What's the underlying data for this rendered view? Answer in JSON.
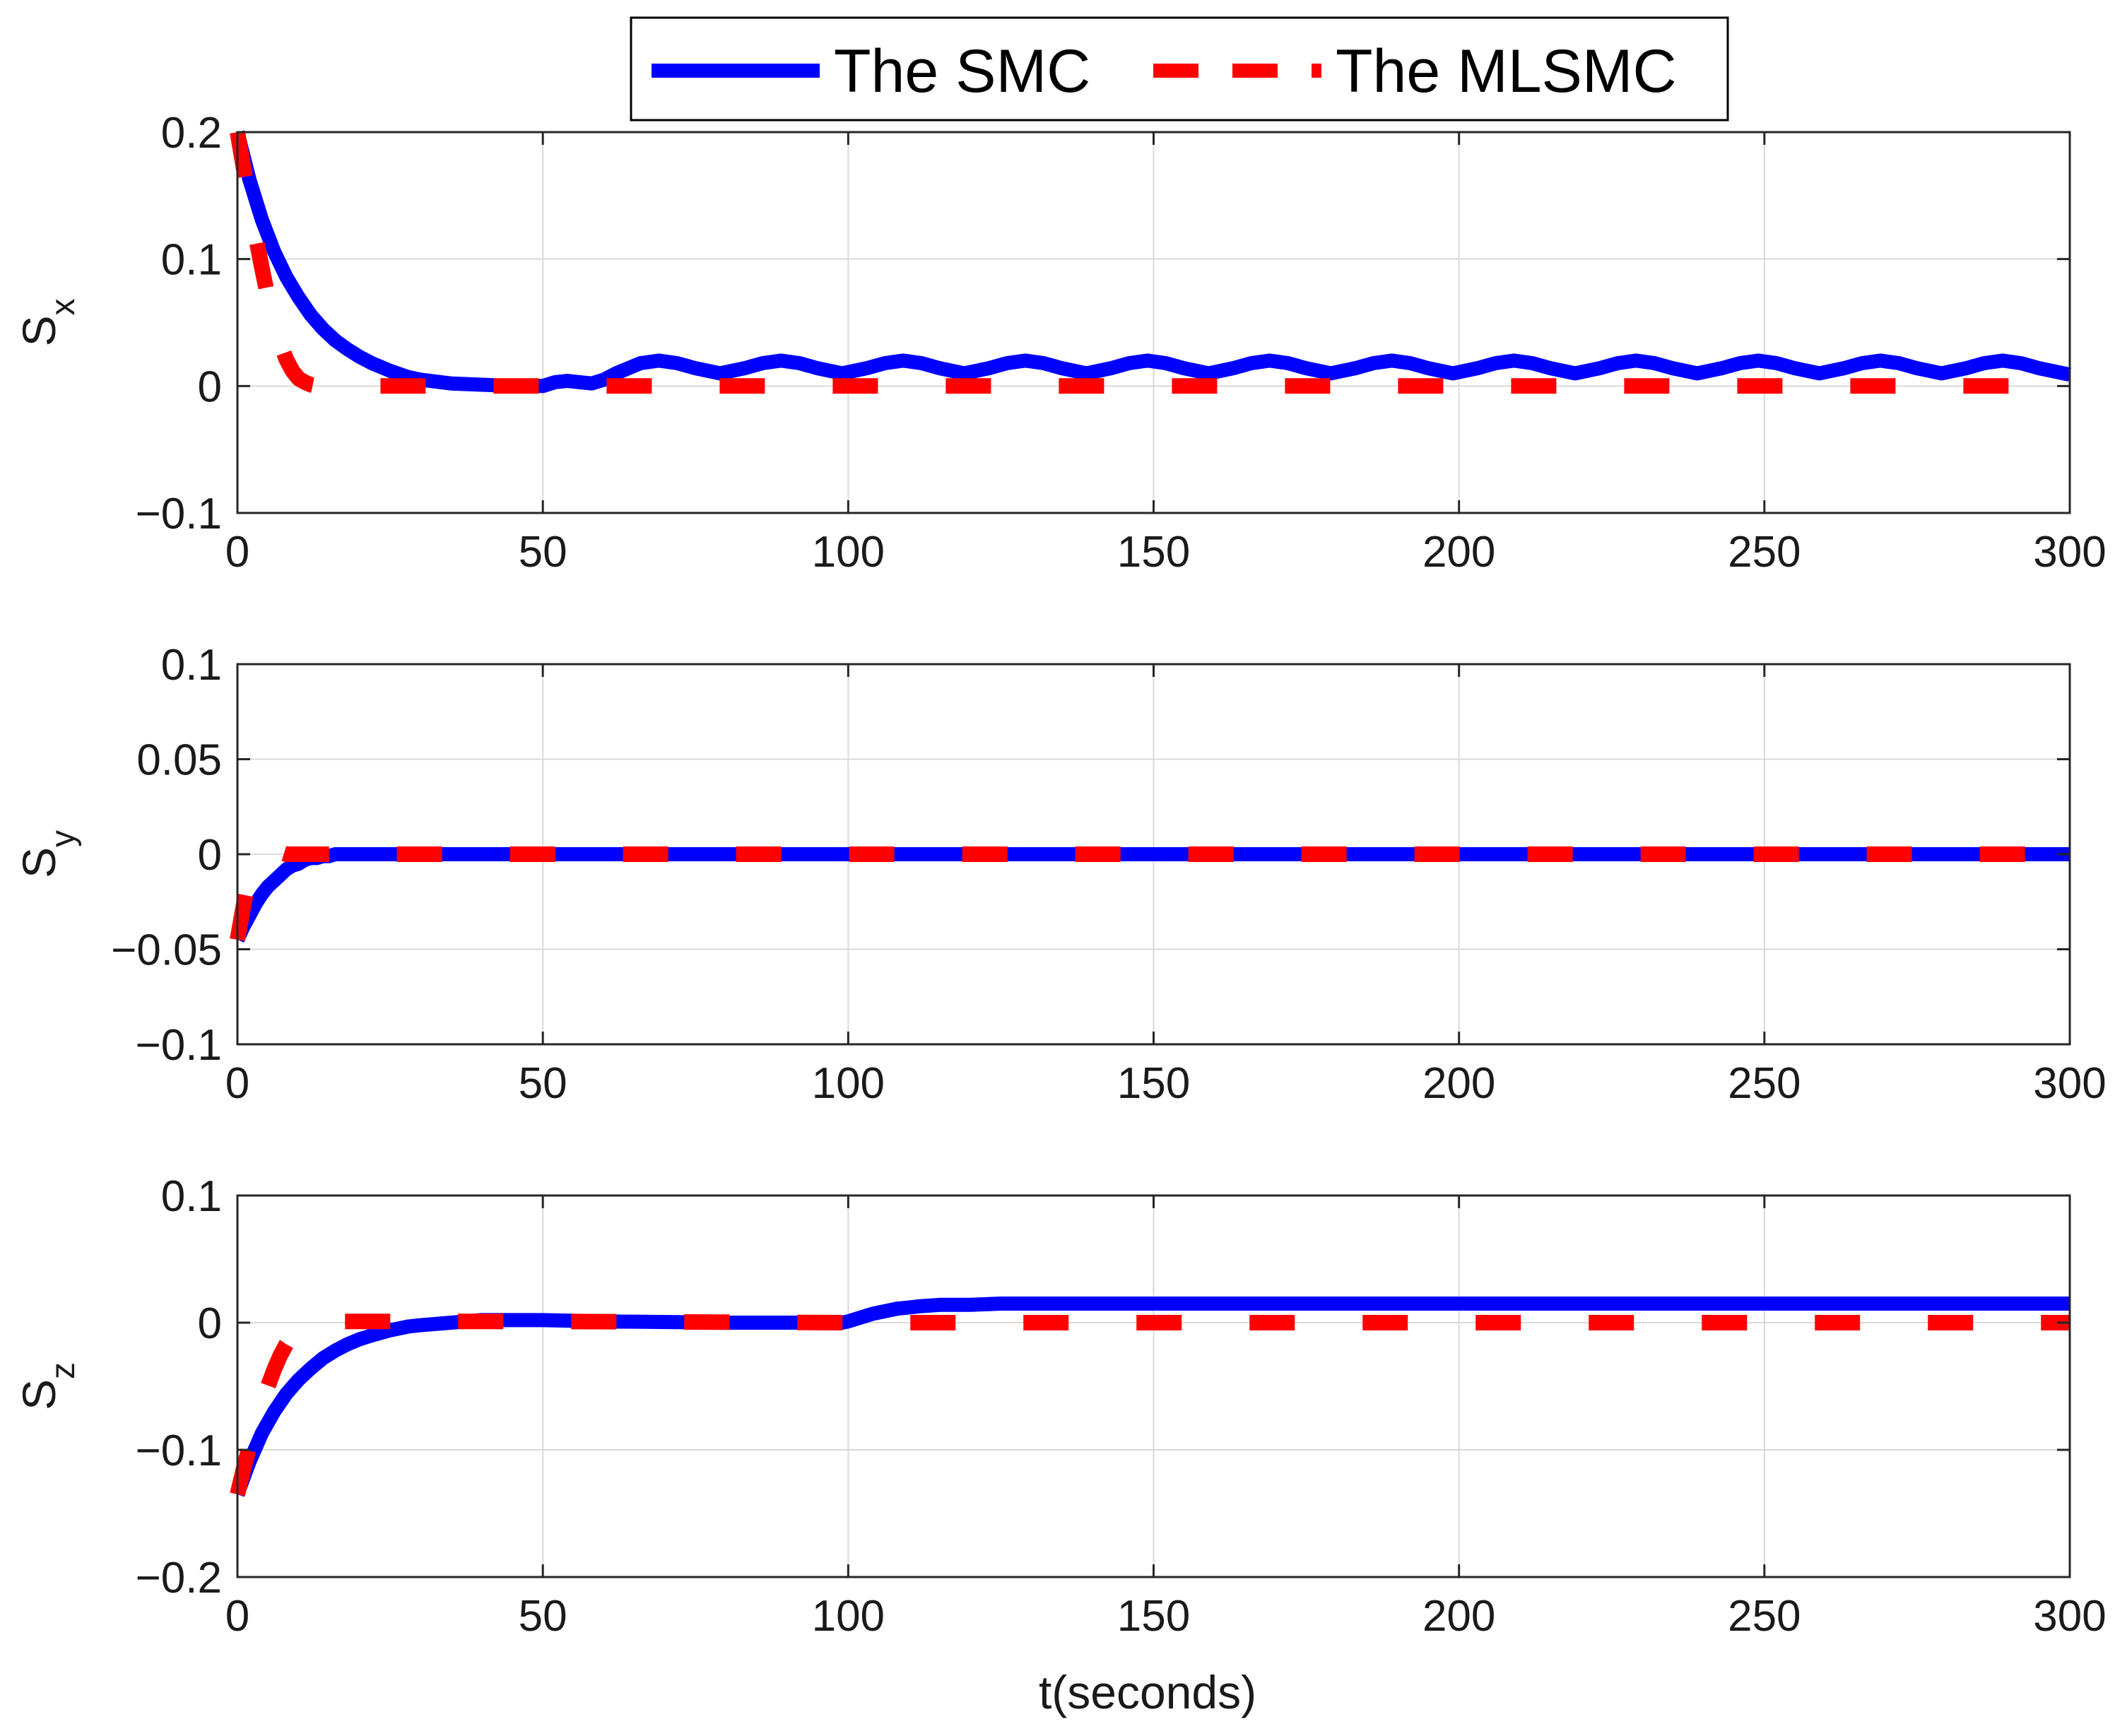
{
  "colors": {
    "smc": "#0000ff",
    "mlsmc": "#ff0000",
    "grid": "#d9d9d9",
    "axis": "#262626"
  },
  "legend": {
    "placement": "top-center",
    "entries": [
      "The SMC",
      "The MLSMC"
    ]
  },
  "chart_data": [
    {
      "type": "line",
      "title": "",
      "xlabel": "",
      "ylabel_base": "S",
      "ylabel_sub": "x",
      "xlim": [
        0,
        300
      ],
      "ylim": [
        -0.1,
        0.2
      ],
      "xticks": [
        0,
        50,
        100,
        150,
        200,
        250,
        300
      ],
      "xtick_labels": [
        "0",
        "50",
        "100",
        "150",
        "200",
        "250",
        "300"
      ],
      "yticks": [
        -0.1,
        0,
        0.1,
        0.2
      ],
      "ytick_labels": [
        "−0.1",
        "0",
        "0.1",
        "0.2"
      ],
      "grid": true,
      "series": [
        {
          "name": "The SMC",
          "x": [
            0,
            2,
            4,
            6,
            8,
            10,
            12,
            14,
            16,
            18,
            20,
            22,
            25,
            28,
            30,
            35,
            40,
            45,
            50,
            52,
            54,
            56,
            58,
            60,
            62,
            64,
            66,
            69,
            72,
            75,
            79,
            83,
            86,
            89,
            92,
            95,
            99,
            103,
            106,
            109,
            112,
            115,
            119,
            123,
            126,
            129,
            132,
            135,
            139,
            143,
            146,
            149,
            152,
            155,
            159,
            163,
            166,
            169,
            172,
            175,
            179,
            183,
            186,
            189,
            192,
            195,
            199,
            203,
            206,
            209,
            212,
            215,
            219,
            223,
            226,
            229,
            232,
            235,
            239,
            243,
            246,
            249,
            252,
            255,
            259,
            263,
            266,
            269,
            272,
            275,
            279,
            283,
            286,
            289,
            292,
            295,
            300
          ],
          "y": [
            0.2,
            0.162,
            0.131,
            0.106,
            0.086,
            0.07,
            0.056,
            0.045,
            0.036,
            0.029,
            0.023,
            0.018,
            0.012,
            0.007,
            0.005,
            0.002,
            0.001,
            0.0,
            0.0,
            0.003,
            0.004,
            0.003,
            0.002,
            0.005,
            0.01,
            0.014,
            0.018,
            0.02,
            0.018,
            0.014,
            0.01,
            0.014,
            0.018,
            0.02,
            0.018,
            0.014,
            0.01,
            0.014,
            0.018,
            0.02,
            0.018,
            0.014,
            0.01,
            0.014,
            0.018,
            0.02,
            0.018,
            0.014,
            0.01,
            0.014,
            0.018,
            0.02,
            0.018,
            0.014,
            0.01,
            0.014,
            0.018,
            0.02,
            0.018,
            0.014,
            0.01,
            0.014,
            0.018,
            0.02,
            0.018,
            0.014,
            0.01,
            0.014,
            0.018,
            0.02,
            0.018,
            0.014,
            0.01,
            0.014,
            0.018,
            0.02,
            0.018,
            0.014,
            0.01,
            0.014,
            0.018,
            0.02,
            0.018,
            0.014,
            0.01,
            0.014,
            0.018,
            0.02,
            0.018,
            0.014,
            0.01,
            0.014,
            0.018,
            0.02,
            0.018,
            0.014,
            0.009
          ]
        },
        {
          "name": "The MLSMC",
          "x": [
            0,
            1,
            2,
            3,
            4,
            5,
            6,
            7,
            8,
            9,
            10,
            11,
            12,
            13,
            14,
            16,
            18,
            20,
            25,
            30,
            50,
            100,
            150,
            200,
            250,
            300
          ],
          "y": [
            0.2,
            0.172,
            0.145,
            0.118,
            0.093,
            0.07,
            0.05,
            0.034,
            0.021,
            0.012,
            0.006,
            0.003,
            0.001,
            0.0,
            0.0,
            0.0,
            0.0,
            0.0,
            0.0,
            0.0,
            0.0,
            0.0,
            0.0,
            0.0,
            0.0,
            0.0
          ]
        }
      ]
    },
    {
      "type": "line",
      "title": "",
      "xlabel": "",
      "ylabel_base": "S",
      "ylabel_sub": "y",
      "xlim": [
        0,
        300
      ],
      "ylim": [
        -0.1,
        0.1
      ],
      "xticks": [
        0,
        50,
        100,
        150,
        200,
        250,
        300
      ],
      "xtick_labels": [
        "0",
        "50",
        "100",
        "150",
        "200",
        "250",
        "300"
      ],
      "yticks": [
        -0.1,
        -0.05,
        0,
        0.05,
        0.1
      ],
      "ytick_labels": [
        "−0.1",
        "−0.05",
        "0",
        "0.05",
        "0.1"
      ],
      "grid": true,
      "series": [
        {
          "name": "The SMC",
          "x": [
            0,
            1,
            2,
            3,
            4,
            5,
            6,
            7,
            8,
            9,
            10,
            11,
            12,
            13,
            14,
            15,
            16,
            18,
            20,
            25,
            30,
            50,
            100,
            150,
            200,
            250,
            300
          ],
          "y": [
            -0.045,
            -0.038,
            -0.032,
            -0.026,
            -0.021,
            -0.017,
            -0.014,
            -0.011,
            -0.008,
            -0.006,
            -0.005,
            -0.003,
            -0.002,
            -0.002,
            -0.001,
            -0.001,
            0.0,
            0.0,
            0.0,
            0.0,
            0.0,
            0.0,
            0.0,
            0.0,
            0.0,
            0.0,
            0.0
          ]
        },
        {
          "name": "The MLSMC",
          "x": [
            0,
            0.5,
            1,
            1.5,
            2,
            2.5,
            3,
            3.5,
            4,
            5,
            6,
            7,
            8,
            10,
            12,
            15,
            20,
            30,
            50,
            100,
            150,
            200,
            250,
            300
          ],
          "y": [
            -0.045,
            -0.036,
            -0.027,
            -0.019,
            -0.012,
            -0.007,
            -0.003,
            -0.001,
            0.0,
            0.001,
            0.001,
            0.001,
            0.0,
            0.0,
            0.0,
            0.0,
            0.0,
            0.0,
            0.0,
            0.0,
            0.0,
            0.0,
            0.0,
            0.0
          ]
        }
      ]
    },
    {
      "type": "line",
      "title": "",
      "xlabel": "t(seconds)",
      "ylabel_base": "S",
      "ylabel_sub": "z",
      "xlim": [
        0,
        300
      ],
      "ylim": [
        -0.2,
        0.1
      ],
      "xticks": [
        0,
        50,
        100,
        150,
        200,
        250,
        300
      ],
      "xtick_labels": [
        "0",
        "50",
        "100",
        "150",
        "200",
        "250",
        "300"
      ],
      "yticks": [
        -0.2,
        -0.1,
        0,
        0.1
      ],
      "ytick_labels": [
        "−0.2",
        "−0.1",
        "0",
        "0.1"
      ],
      "grid": true,
      "series": [
        {
          "name": "The SMC",
          "x": [
            0,
            2,
            4,
            6,
            8,
            10,
            12,
            14,
            16,
            18,
            20,
            22,
            25,
            28,
            30,
            35,
            40,
            50,
            60,
            80,
            99,
            100,
            102,
            104,
            106,
            108,
            110,
            112,
            115,
            120,
            125,
            130,
            150,
            200,
            250,
            300
          ],
          "y": [
            -0.135,
            -0.109,
            -0.087,
            -0.07,
            -0.056,
            -0.045,
            -0.036,
            -0.028,
            -0.022,
            -0.017,
            -0.013,
            -0.01,
            -0.006,
            -0.003,
            -0.002,
            0.0,
            0.002,
            0.002,
            0.001,
            0.0,
            0.0,
            0.001,
            0.004,
            0.007,
            0.009,
            0.011,
            0.012,
            0.013,
            0.014,
            0.014,
            0.015,
            0.015,
            0.015,
            0.015,
            0.015,
            0.015
          ]
        },
        {
          "name": "The MLSMC",
          "x": [
            0,
            1,
            2,
            3,
            4,
            5,
            6,
            7,
            8,
            9,
            10,
            11,
            12,
            13,
            14,
            16,
            18,
            20,
            30,
            50,
            100,
            150,
            200,
            250,
            300
          ],
          "y": [
            -0.135,
            -0.115,
            -0.097,
            -0.08,
            -0.064,
            -0.05,
            -0.037,
            -0.026,
            -0.017,
            -0.01,
            -0.005,
            -0.002,
            0.0,
            0.001,
            0.001,
            0.001,
            0.001,
            0.001,
            0.001,
            0.001,
            0.0,
            0.0,
            0.0,
            0.0,
            0.0
          ]
        }
      ]
    }
  ]
}
